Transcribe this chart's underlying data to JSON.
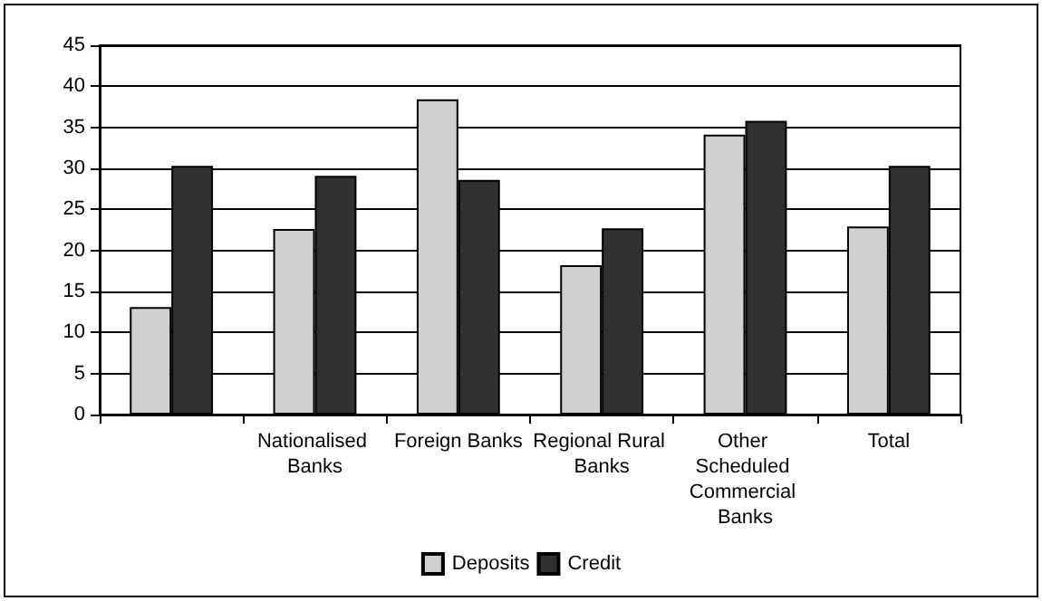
{
  "chart_data": {
    "type": "bar",
    "categories": [
      null,
      "Nationalised Banks",
      "Foreign Banks",
      "Regional Rural Banks",
      "Other Scheduled Commercial Banks",
      "Total"
    ],
    "series": [
      {
        "name": "Deposits",
        "color": "#d0d0d0",
        "values": [
          13.1,
          22.6,
          38.4,
          18.2,
          34.1,
          22.9
        ]
      },
      {
        "name": "Credit",
        "color": "#303030",
        "values": [
          30.3,
          29.1,
          28.6,
          22.7,
          35.8,
          30.3
        ]
      }
    ],
    "ylim": [
      0,
      45
    ],
    "yticks": [
      0,
      5,
      10,
      15,
      20,
      25,
      30,
      35,
      40,
      45
    ],
    "grid": "y",
    "legend": "bottom"
  }
}
